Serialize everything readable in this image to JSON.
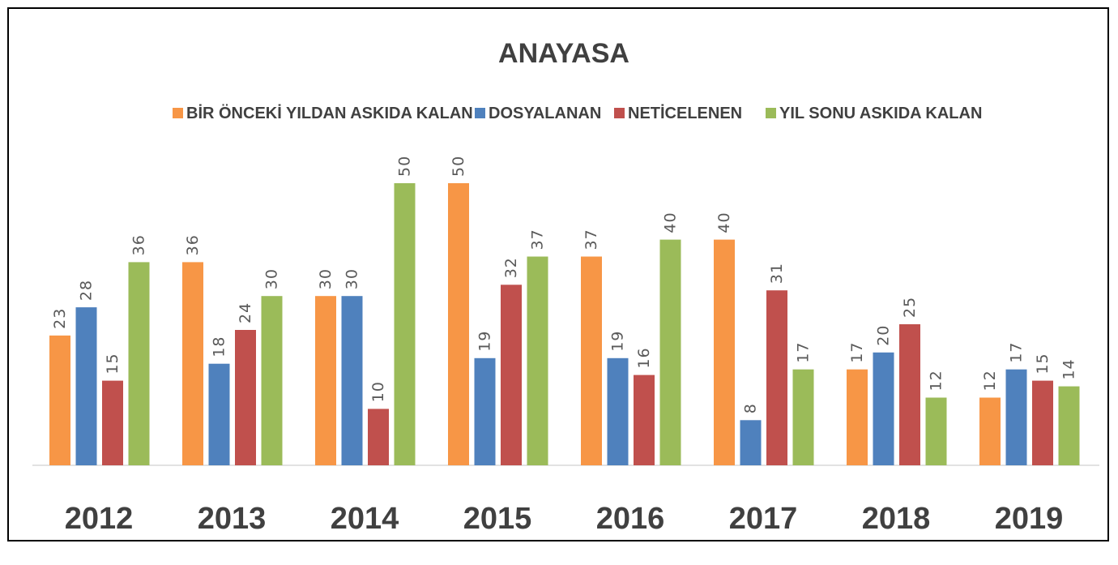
{
  "chart_data": {
    "type": "bar",
    "title": "ANAYASA",
    "categories": [
      "2012",
      "2013",
      "2014",
      "2015",
      "2016",
      "2017",
      "2018",
      "2019"
    ],
    "series": [
      {
        "name": "BİR ÖNCEKİ YILDAN ASKIDA KALAN",
        "color": "#f79646",
        "values": [
          23,
          36,
          30,
          50,
          37,
          40,
          17,
          12
        ]
      },
      {
        "name": "DOSYALANAN",
        "color": "#4f81bd",
        "values": [
          28,
          18,
          30,
          19,
          19,
          8,
          20,
          17
        ]
      },
      {
        "name": "NETİCELENEN",
        "color": "#c0504d",
        "values": [
          15,
          24,
          10,
          32,
          16,
          31,
          25,
          15
        ]
      },
      {
        "name": "YIL SONU ASKIDA KALAN",
        "color": "#9bbb59",
        "values": [
          36,
          30,
          50,
          37,
          40,
          17,
          12,
          14
        ]
      }
    ],
    "ylim": [
      0,
      50
    ],
    "grid": false,
    "legend_position": "top",
    "data_labels": true,
    "colors": {
      "title": "#404040",
      "legend_text": "#404040",
      "data_label": "#595959",
      "category_label": "#404040",
      "axis_line": "#d9d9d9"
    }
  }
}
